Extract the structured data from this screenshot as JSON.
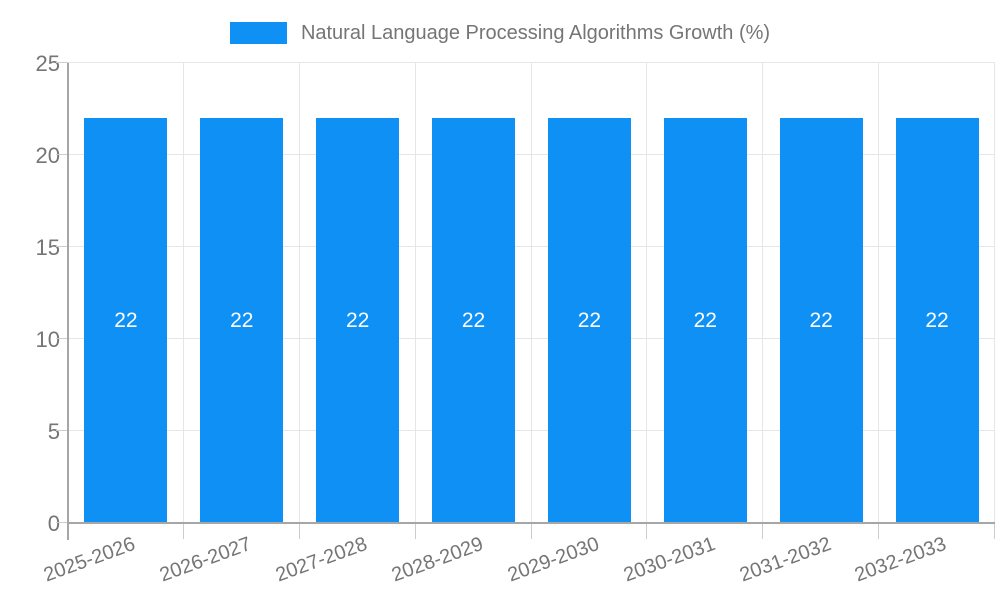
{
  "chart_data": {
    "type": "bar",
    "title": "Natural Language Processing Algorithms Growth (%)",
    "categories": [
      "2025-2026",
      "2026-2027",
      "2027-2028",
      "2028-2029",
      "2029-2030",
      "2030-2031",
      "2031-2032",
      "2032-2033"
    ],
    "series": [
      {
        "name": "Natural Language Processing Algorithms Growth (%)",
        "values": [
          22,
          22,
          22,
          22,
          22,
          22,
          22,
          22
        ]
      }
    ],
    "values": [
      22,
      22,
      22,
      22,
      22,
      22,
      22,
      22
    ],
    "bar_labels": [
      "22",
      "22",
      "22",
      "22",
      "22",
      "22",
      "22",
      "22"
    ],
    "xlabel": "",
    "ylabel": "",
    "ylim": [
      0,
      25
    ],
    "yticks": [
      0,
      5,
      10,
      15,
      20,
      25
    ],
    "legend_position": "top-center",
    "grid": true,
    "x_label_rotation_deg": -20,
    "colors": {
      "bar": "#0e90f4",
      "bar_value_text": "#ffffff",
      "grid_line": "#e6e6e6",
      "axis_line": "#a6a6a6",
      "tick_mark": "#cccccc",
      "tick_text": "#757575",
      "legend_text": "#757575"
    }
  }
}
